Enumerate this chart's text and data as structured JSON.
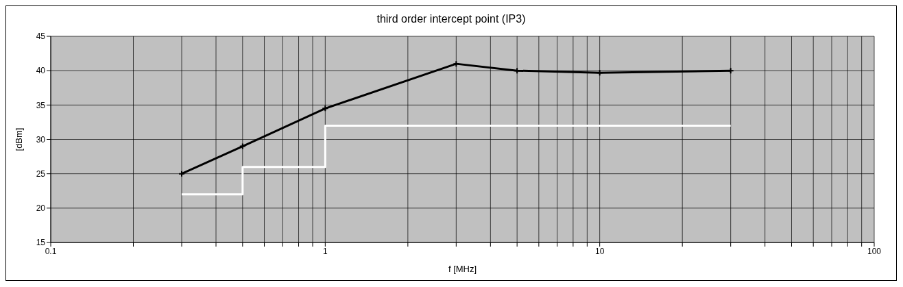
{
  "chart_data": {
    "type": "line",
    "title": "third order intercept point (IP3)",
    "xlabel": "f [MHz]",
    "ylabel": "[dBm]",
    "log": "x",
    "grid": true,
    "marker": "cross",
    "line_style": "solid",
    "xlim": [
      0.1,
      100
    ],
    "xticks": [
      0.1,
      {
        "value": 0.2,
        "label": null
      },
      {
        "value": 0.3,
        "label": null
      },
      {
        "value": 0.4,
        "label": null
      },
      {
        "value": 0.5,
        "label": null
      },
      {
        "value": 0.6,
        "label": null
      },
      {
        "value": 0.7,
        "label": null
      },
      {
        "value": 0.8,
        "label": null
      },
      {
        "value": 0.9,
        "label": null
      },
      1,
      {
        "value": 2,
        "label": null
      },
      {
        "value": 3,
        "label": null
      },
      {
        "value": 4,
        "label": null
      },
      {
        "value": 5,
        "label": null
      },
      {
        "value": 6,
        "label": null
      },
      {
        "value": 7,
        "label": null
      },
      {
        "value": 8,
        "label": null
      },
      {
        "value": 9,
        "label": null
      },
      10,
      {
        "value": 20,
        "label": null
      },
      {
        "value": 30,
        "label": null
      },
      {
        "value": 40,
        "label": null
      },
      {
        "value": 50,
        "label": null
      },
      {
        "value": 60,
        "label": null
      },
      {
        "value": 70,
        "label": null
      },
      {
        "value": 80,
        "label": null
      },
      {
        "value": 90,
        "label": null
      },
      100
    ],
    "ylim": [
      15,
      45
    ],
    "yticks": [
      15,
      20,
      25,
      30,
      35,
      40,
      45
    ],
    "series": [
      {
        "color": "#000000",
        "x": [
          0.3,
          0.5,
          1,
          3,
          5,
          10,
          30
        ],
        "values": [
          25,
          29,
          34.5,
          41,
          40,
          39.7,
          40
        ]
      },
      {
        "type": "step",
        "color": "#ffffff",
        "marker": "none",
        "x": [
          0.3,
          0.5,
          1,
          30
        ],
        "values": [
          22,
          26,
          32,
          32
        ]
      }
    ]
  }
}
